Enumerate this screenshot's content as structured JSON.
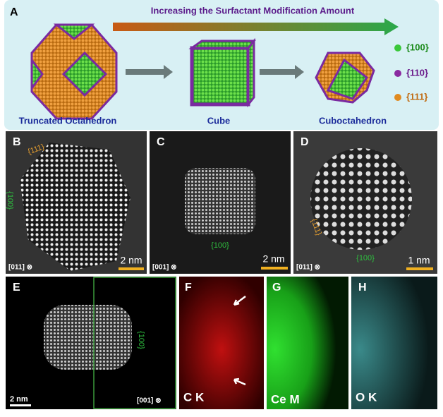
{
  "panel_a": {
    "label": "A",
    "arrow_text": "Increasing the Surfactant Modification Amount",
    "shapes": [
      "Truncated Octahedron",
      "Cube",
      "Cuboctahedron"
    ],
    "legend": [
      "{100}",
      "{110}",
      "{111}"
    ]
  },
  "panel_b": {
    "label": "B",
    "facet_top": "{111}",
    "facet_side": "{100}",
    "scale": "2 nm",
    "zone": "[011] ⊗"
  },
  "panel_c": {
    "label": "C",
    "facet": "{100}",
    "scale": "2 nm",
    "zone": "[001] ⊗"
  },
  "panel_d": {
    "label": "D",
    "facet_side": "{111}",
    "facet_bottom": "{100}",
    "scale": "1 nm",
    "zone": "[011] ⊗"
  },
  "panel_e": {
    "label": "E",
    "facet": "{100}",
    "scale": "2 nm",
    "zone": "[001] ⊗"
  },
  "panel_f": {
    "label": "F",
    "element": "C K"
  },
  "panel_g": {
    "label": "G",
    "element": "Ce M"
  },
  "panel_h": {
    "label": "H",
    "element": "O K"
  }
}
